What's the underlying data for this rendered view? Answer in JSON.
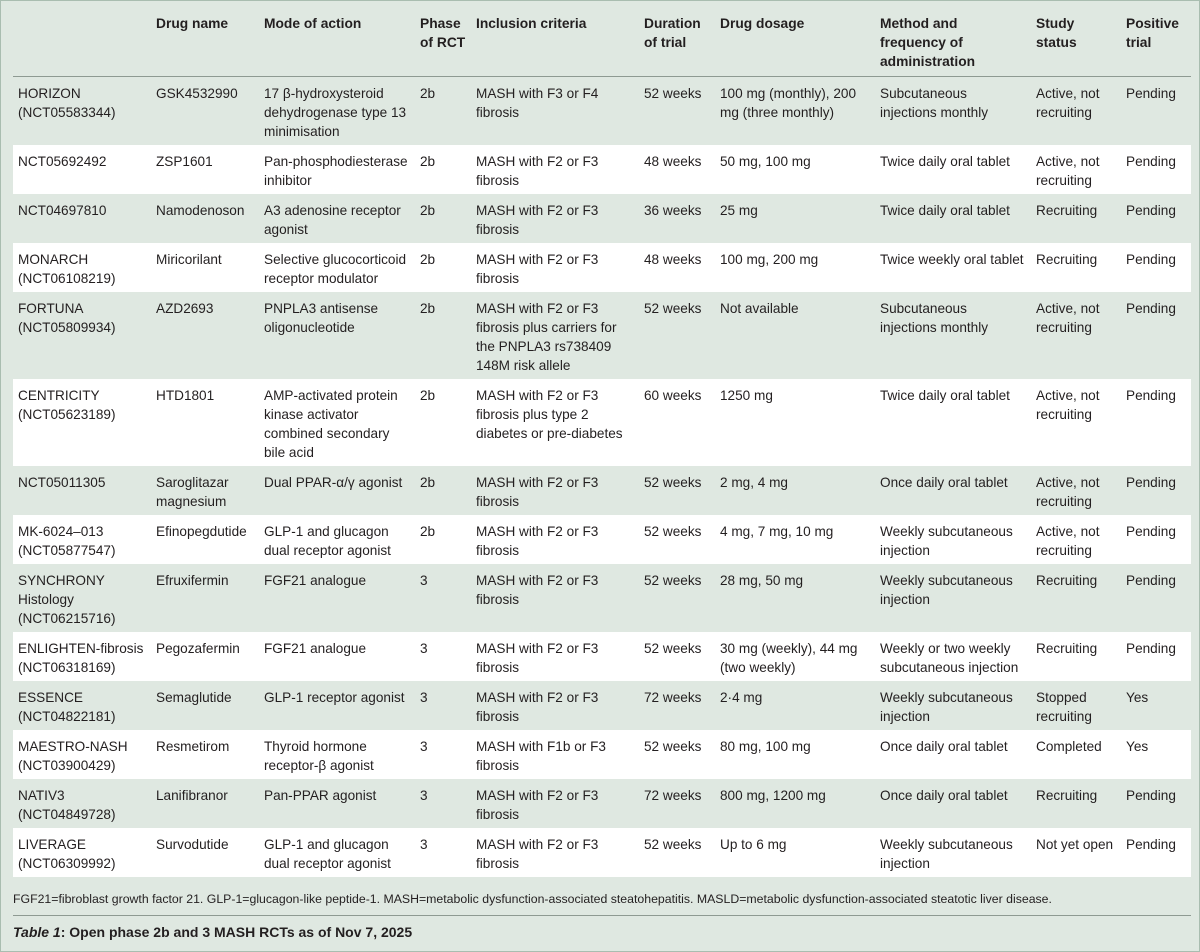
{
  "table": {
    "headers": [
      "",
      "Drug name",
      "Mode of action",
      "Phase of RCT",
      "Inclusion criteria",
      "Duration of trial",
      "Drug dosage",
      "Method and frequency of administration",
      "Study status",
      "Positive trial"
    ],
    "rows": [
      [
        "HORIZON (NCT05583344)",
        "GSK4532990",
        "17 β-hydroxysteroid dehydrogenase type 13 minimisation",
        "2b",
        "MASH with F3 or F4 fibrosis",
        "52 weeks",
        "100 mg (monthly), 200 mg (three monthly)",
        "Subcutaneous injections monthly",
        "Active, not recruiting",
        "Pending"
      ],
      [
        "NCT05692492",
        "ZSP1601",
        "Pan-phosphodiesterase inhibitor",
        "2b",
        "MASH with F2 or F3 fibrosis",
        "48 weeks",
        "50 mg, 100 mg",
        "Twice daily oral tablet",
        "Active, not recruiting",
        "Pending"
      ],
      [
        "NCT04697810",
        "Namodenoson",
        "A3 adenosine receptor agonist",
        "2b",
        "MASH with F2 or F3 fibrosis",
        "36 weeks",
        "25 mg",
        "Twice daily oral tablet",
        "Recruiting",
        "Pending"
      ],
      [
        "MONARCH (NCT06108219)",
        "Miricorilant",
        "Selective glucocorticoid receptor modulator",
        "2b",
        "MASH with F2 or F3 fibrosis",
        "48 weeks",
        "100 mg, 200 mg",
        "Twice weekly oral tablet",
        "Recruiting",
        "Pending"
      ],
      [
        "FORTUNA (NCT05809934)",
        "AZD2693",
        "PNPLA3 antisense oligonucleotide",
        "2b",
        "MASH with F2 or F3 fibrosis plus carriers for the PNPLA3 rs738409 148M risk allele",
        "52 weeks",
        "Not available",
        "Subcutaneous injections monthly",
        "Active, not recruiting",
        "Pending"
      ],
      [
        "CENTRICITY (NCT05623189)",
        "HTD1801",
        "AMP-activated protein kinase activator combined secondary bile acid",
        "2b",
        "MASH with F2 or F3 fibrosis plus type 2 diabetes or pre-diabetes",
        "60 weeks",
        "1250 mg",
        "Twice daily oral tablet",
        "Active, not recruiting",
        "Pending"
      ],
      [
        "NCT05011305",
        "Saroglitazar magnesium",
        "Dual PPAR-α/γ agonist",
        "2b",
        "MASH with F2 or F3 fibrosis",
        "52 weeks",
        "2 mg, 4 mg",
        "Once daily oral tablet",
        "Active, not recruiting",
        "Pending"
      ],
      [
        "MK-6024–013 (NCT05877547)",
        "Efinopegdutide",
        "GLP-1 and glucagon dual receptor agonist",
        "2b",
        "MASH with F2 or F3 fibrosis",
        "52 weeks",
        "4 mg, 7 mg, 10 mg",
        "Weekly subcutaneous injection",
        "Active, not recruiting",
        "Pending"
      ],
      [
        "SYNCHRONY Histology (NCT06215716)",
        "Efruxifermin",
        "FGF21 analogue",
        "3",
        "MASH with F2 or F3 fibrosis",
        "52 weeks",
        "28 mg, 50 mg",
        "Weekly subcutaneous injection",
        "Recruiting",
        "Pending"
      ],
      [
        "ENLIGHTEN-fibrosis (NCT06318169)",
        "Pegozafermin",
        "FGF21 analogue",
        "3",
        "MASH with F2 or F3 fibrosis",
        "52 weeks",
        "30 mg (weekly), 44 mg (two weekly)",
        "Weekly or two weekly subcutaneous injection",
        "Recruiting",
        "Pending"
      ],
      [
        "ESSENCE (NCT04822181)",
        "Semaglutide",
        "GLP-1 receptor agonist",
        "3",
        "MASH with F2 or F3 fibrosis",
        "72 weeks",
        "2·4 mg",
        "Weekly subcutaneous injection",
        "Stopped recruiting",
        "Yes"
      ],
      [
        "MAESTRO-NASH (NCT03900429)",
        "Resmetirom",
        "Thyroid hormone receptor-β agonist",
        "3",
        "MASH with F1b or F3 fibrosis",
        "52 weeks",
        "80 mg, 100 mg",
        "Once daily oral tablet",
        "Completed",
        "Yes"
      ],
      [
        "NATIV3 (NCT04849728)",
        "Lanifibranor",
        "Pan-PPAR agonist",
        "3",
        "MASH with F2 or F3 fibrosis",
        "72 weeks",
        "800 mg, 1200 mg",
        "Once daily oral tablet",
        "Recruiting",
        "Pending"
      ],
      [
        "LIVERAGE (NCT06309992)",
        "Survodutide",
        "GLP-1 and glucagon dual receptor agonist",
        "3",
        "MASH with F2 or F3 fibrosis",
        "52 weeks",
        "Up to 6 mg",
        "Weekly subcutaneous injection",
        "Not yet open",
        "Pending"
      ]
    ]
  },
  "footnote": "FGF21=fibroblast growth factor 21. GLP-1=glucagon-like peptide-1. MASH=metabolic dysfunction-associated steatohepatitis. MASLD=metabolic dysfunction-associated steatotic liver disease.",
  "caption": {
    "label": "Table 1",
    "text": ": Open phase 2b and 3 MASH RCTs as of Nov 7, 2025"
  }
}
